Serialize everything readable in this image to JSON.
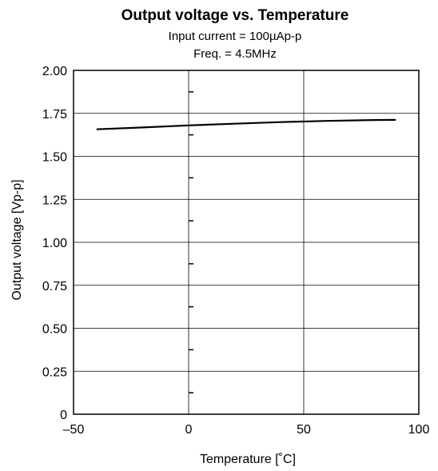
{
  "chart_data": {
    "type": "line",
    "title": "Output voltage vs. Temperature",
    "subtitle_lines": [
      "Input current = 100µAp-p",
      "Freq. = 4.5MHz"
    ],
    "xlabel": "Temperature [˚C]",
    "ylabel": "Output voltage [Vp-p]",
    "xlim": [
      -50,
      100
    ],
    "ylim": [
      0,
      2.0
    ],
    "x_ticks": [
      -50,
      0,
      50,
      100
    ],
    "x_tick_labels": [
      "–50",
      "0",
      "50",
      "100"
    ],
    "y_ticks": [
      0,
      0.25,
      0.5,
      0.75,
      1.0,
      1.25,
      1.5,
      1.75,
      2.0
    ],
    "y_tick_labels": [
      "0",
      "0.25",
      "0.50",
      "0.75",
      "1.00",
      "1.25",
      "1.50",
      "1.75",
      "2.00"
    ],
    "grid": true,
    "series": [
      {
        "x": [
          -40,
          -20,
          0,
          20,
          40,
          60,
          80,
          90
        ],
        "y": [
          1.657,
          1.668,
          1.68,
          1.69,
          1.699,
          1.706,
          1.711,
          1.712
        ]
      }
    ]
  }
}
